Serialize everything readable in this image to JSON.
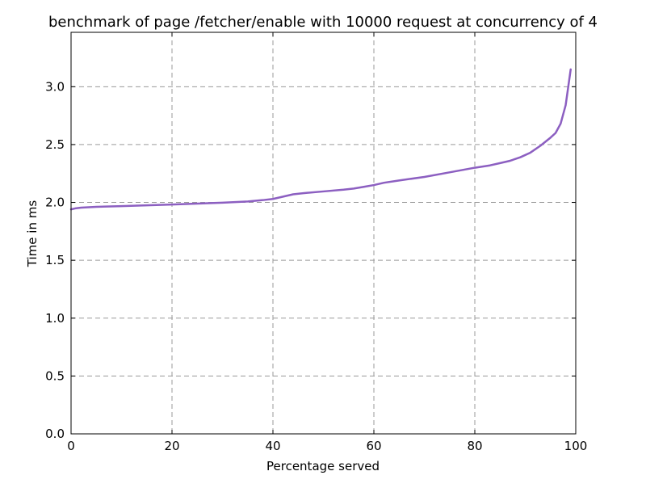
{
  "chart_data": {
    "type": "line",
    "title": "benchmark of page /fetcher/enable with 10000 request at concurrency of 4",
    "xlabel": "Percentage served",
    "ylabel": "Time in ms",
    "xlim": [
      0,
      100
    ],
    "ylim": [
      0,
      3.47
    ],
    "x_ticks": [
      0,
      20,
      40,
      60,
      80,
      100
    ],
    "x_tick_labels": [
      "0",
      "20",
      "40",
      "60",
      "80",
      "100"
    ],
    "y_ticks": [
      0,
      0.5,
      1.0,
      1.5,
      2.0,
      2.5,
      3.0
    ],
    "y_tick_labels": [
      "0.0",
      "0.5",
      "1.0",
      "1.5",
      "2.0",
      "2.5",
      "3.0"
    ],
    "grid": true,
    "line_color": "#8c5fc1",
    "series": [
      {
        "x": [
          0,
          1,
          2,
          5,
          10,
          15,
          20,
          25,
          30,
          35,
          38,
          40,
          42,
          44,
          46,
          50,
          54,
          56,
          58,
          60,
          62,
          65,
          70,
          75,
          80,
          83,
          85,
          87,
          89,
          91,
          93,
          95,
          96,
          97,
          98,
          99
        ],
        "y": [
          1.94,
          1.95,
          1.955,
          1.962,
          1.968,
          1.975,
          1.982,
          1.99,
          1.998,
          2.008,
          2.02,
          2.03,
          2.05,
          2.07,
          2.08,
          2.095,
          2.11,
          2.12,
          2.135,
          2.15,
          2.17,
          2.19,
          2.22,
          2.26,
          2.3,
          2.32,
          2.34,
          2.36,
          2.39,
          2.43,
          2.49,
          2.56,
          2.6,
          2.68,
          2.84,
          3.15
        ]
      }
    ]
  }
}
